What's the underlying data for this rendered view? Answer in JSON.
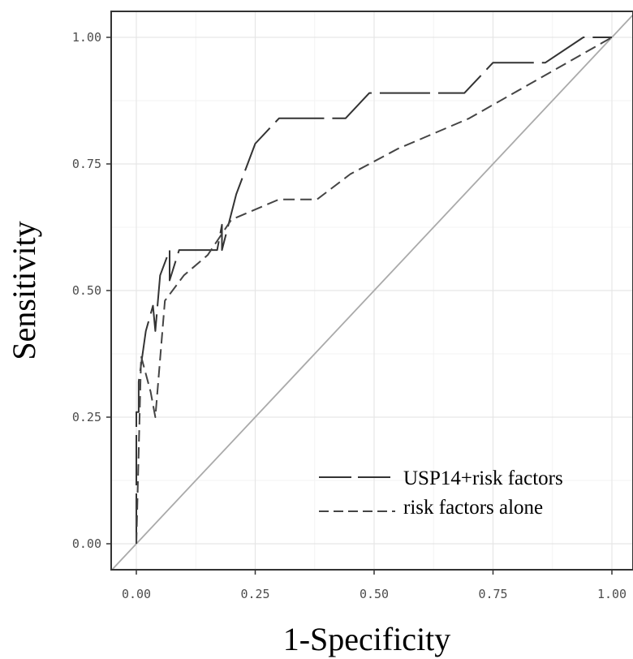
{
  "chart_data": {
    "type": "line",
    "title": "",
    "xlabel": "1-Specificity",
    "ylabel": "Sensitivity",
    "xlim": [
      -0.05,
      1.05
    ],
    "ylim": [
      -0.05,
      1.05
    ],
    "x_ticks": [
      0,
      0.25,
      0.5,
      0.75,
      1
    ],
    "x_tick_labels": [
      "0.00",
      "0.25",
      "0.50",
      "0.75",
      "1.00"
    ],
    "y_ticks": [
      0,
      0.25,
      0.5,
      0.75,
      1
    ],
    "y_tick_labels": [
      "0.00",
      "0.25",
      "0.50",
      "0.75",
      "1.00"
    ],
    "grid": true,
    "legend_position": "bottom-right",
    "reference_line": {
      "x": [
        0,
        1
      ],
      "y": [
        0,
        1
      ],
      "color": "#aaaaaa"
    },
    "series": [
      {
        "name": "USP14+risk factors",
        "style": "long-dash",
        "color": "#333333",
        "x": [
          0,
          0,
          0.005,
          0.005,
          0.02,
          0.035,
          0.04,
          0.05,
          0.07,
          0.07,
          0.09,
          0.17,
          0.18,
          0.18,
          0.21,
          0.25,
          0.3,
          0.44,
          0.49,
          0.69,
          0.75,
          0.86,
          0.94,
          1
        ],
        "y": [
          0,
          0.26,
          0.26,
          0.32,
          0.42,
          0.47,
          0.42,
          0.53,
          0.58,
          0.52,
          0.58,
          0.58,
          0.63,
          0.58,
          0.69,
          0.79,
          0.84,
          0.84,
          0.89,
          0.89,
          0.95,
          0.95,
          1,
          1
        ]
      },
      {
        "name": "risk factors alone",
        "style": "dash",
        "color": "#444444",
        "x": [
          0,
          0.01,
          0.03,
          0.04,
          0.06,
          0.1,
          0.15,
          0.2,
          0.3,
          0.38,
          0.45,
          0.55,
          0.7,
          0.85,
          1
        ],
        "y": [
          0,
          0.37,
          0.3,
          0.25,
          0.48,
          0.53,
          0.57,
          0.64,
          0.68,
          0.68,
          0.73,
          0.78,
          0.84,
          0.92,
          1
        ]
      }
    ]
  }
}
